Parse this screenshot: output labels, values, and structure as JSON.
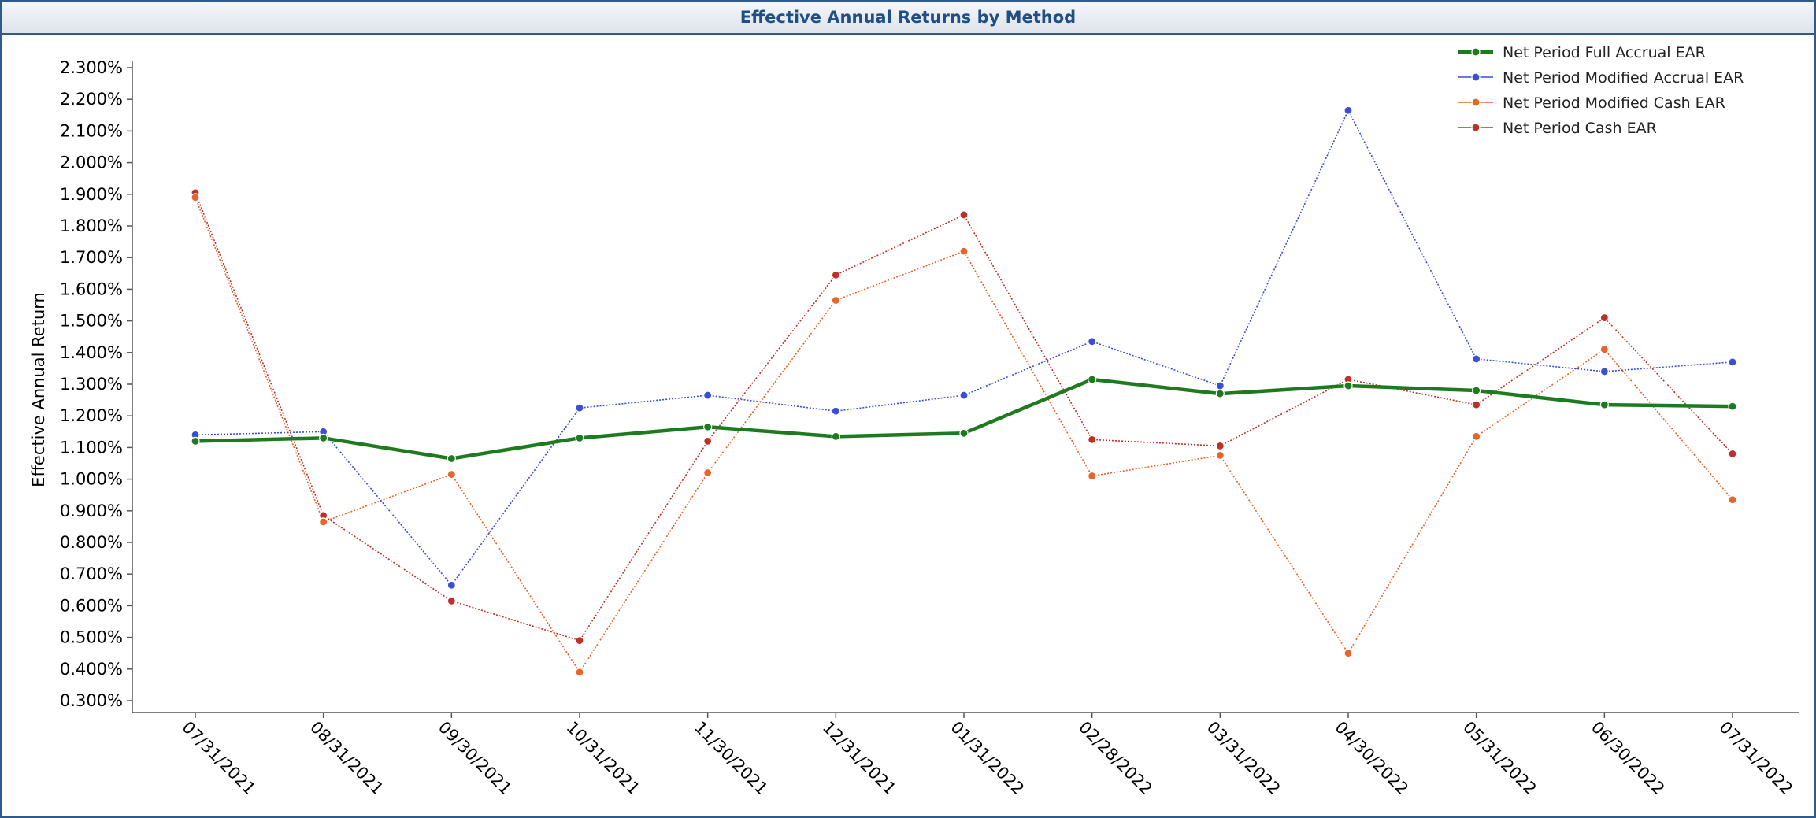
{
  "window": {
    "title": "Effective Annual Returns by Method"
  },
  "chart_data": {
    "type": "line",
    "title": "Effective Annual Returns by Method",
    "xlabel": "",
    "ylabel": "Effective Annual Return",
    "ylim": [
      0.3,
      2.3
    ],
    "yticks": [
      "2.300%",
      "2.200%",
      "2.100%",
      "2.000%",
      "1.900%",
      "1.800%",
      "1.700%",
      "1.600%",
      "1.500%",
      "1.400%",
      "1.300%",
      "1.200%",
      "1.100%",
      "1.000%",
      "0.900%",
      "0.800%",
      "0.700%",
      "0.600%",
      "0.500%",
      "0.400%",
      "0.300%"
    ],
    "grid": false,
    "legend_position": "top-right",
    "x": [
      "07/31/2021",
      "08/31/2021",
      "09/30/2021",
      "10/31/2021",
      "11/30/2021",
      "12/31/2021",
      "01/31/2022",
      "02/28/2022",
      "03/31/2022",
      "04/30/2022",
      "05/31/2022",
      "06/30/2022",
      "07/31/2022"
    ],
    "series": [
      {
        "name": "Net Period Full Accrual EAR",
        "color": "#1e7a1e",
        "style": "solid",
        "values": [
          1.12,
          1.13,
          1.065,
          1.13,
          1.165,
          1.135,
          1.145,
          1.315,
          1.27,
          1.295,
          1.28,
          1.235,
          1.23
        ]
      },
      {
        "name": "Net Period Modified Accrual EAR",
        "color": "#3a4fd6",
        "style": "dotted",
        "values": [
          1.14,
          1.15,
          0.665,
          1.225,
          1.265,
          1.215,
          1.265,
          1.435,
          1.295,
          2.165,
          1.38,
          1.34,
          1.37
        ]
      },
      {
        "name": "Net Period Modified Cash EAR",
        "color": "#e8642a",
        "style": "dotted",
        "values": [
          1.89,
          0.865,
          1.015,
          0.39,
          1.02,
          1.565,
          1.72,
          1.01,
          1.075,
          0.45,
          1.135,
          1.41,
          0.935
        ]
      },
      {
        "name": "Net Period Cash EAR",
        "color": "#c0302a",
        "style": "dotted",
        "values": [
          1.905,
          0.885,
          0.615,
          0.49,
          1.12,
          1.645,
          1.835,
          1.125,
          1.105,
          1.315,
          1.235,
          1.51,
          1.08
        ]
      }
    ]
  }
}
